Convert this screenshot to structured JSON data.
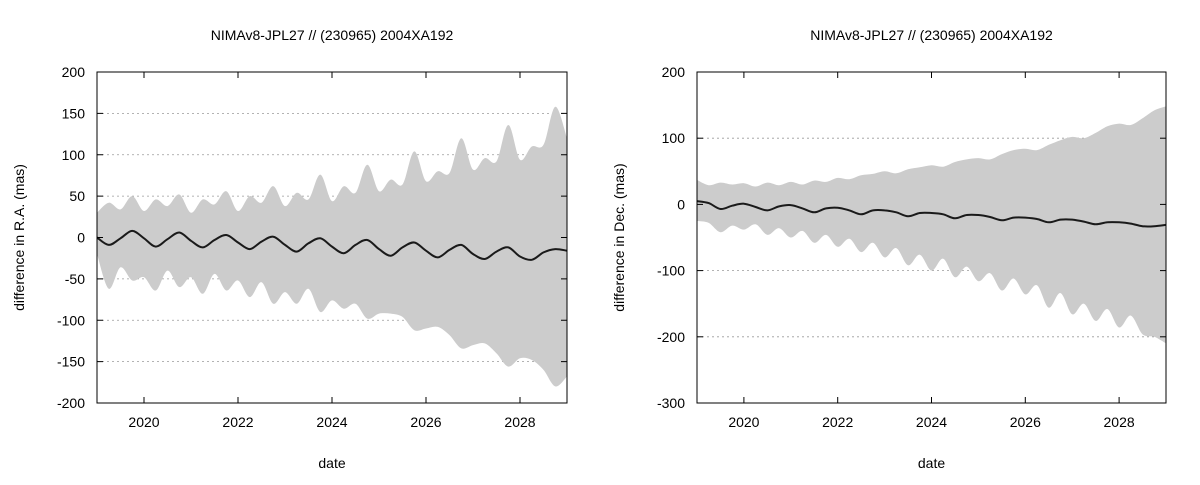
{
  "chart_data": [
    {
      "type": "area",
      "title": "NIMAv8-JPL27 // (230965) 2004XA192",
      "xlabel": "date",
      "ylabel": "difference in R.A. (mas)",
      "xlim": [
        2019.0,
        2029.0
      ],
      "ylim": [
        -200,
        200
      ],
      "xticks": [
        2020,
        2022,
        2024,
        2026,
        2028
      ],
      "yticks": [
        -200,
        -150,
        -100,
        -50,
        0,
        50,
        100,
        150,
        200
      ],
      "grid": "horizontal dotted",
      "colors": {
        "band": "#cccccc",
        "line": "#1a1a1a",
        "grid": "#9a9a9a"
      },
      "series": [
        {
          "kind": "band",
          "x": [
            2019.0,
            2019.25,
            2019.5,
            2019.75,
            2020.0,
            2020.25,
            2020.5,
            2020.75,
            2021.0,
            2021.25,
            2021.5,
            2021.75,
            2022.0,
            2022.25,
            2022.5,
            2022.75,
            2023.0,
            2023.25,
            2023.5,
            2023.75,
            2024.0,
            2024.25,
            2024.5,
            2024.75,
            2025.0,
            2025.25,
            2025.5,
            2025.75,
            2026.0,
            2026.25,
            2026.5,
            2026.75,
            2027.0,
            2027.25,
            2027.5,
            2027.75,
            2028.0,
            2028.25,
            2028.5,
            2028.75,
            2029.0
          ],
          "upper": [
            30,
            42,
            34,
            50,
            32,
            46,
            38,
            52,
            30,
            46,
            40,
            56,
            32,
            50,
            42,
            62,
            38,
            54,
            46,
            76,
            44,
            62,
            54,
            88,
            56,
            70,
            64,
            104,
            68,
            80,
            78,
            120,
            82,
            96,
            92,
            136,
            94,
            110,
            112,
            158,
            120
          ],
          "lower": [
            -20,
            -62,
            -36,
            -52,
            -48,
            -64,
            -40,
            -60,
            -48,
            -68,
            -44,
            -64,
            -52,
            -72,
            -54,
            -80,
            -66,
            -80,
            -62,
            -90,
            -76,
            -86,
            -80,
            -98,
            -92,
            -92,
            -96,
            -112,
            -110,
            -108,
            -118,
            -134,
            -130,
            -128,
            -140,
            -156,
            -146,
            -148,
            -160,
            -180,
            -168
          ]
        },
        {
          "kind": "line",
          "x": [
            2019.0,
            2019.25,
            2019.5,
            2019.75,
            2020.0,
            2020.25,
            2020.5,
            2020.75,
            2021.0,
            2021.25,
            2021.5,
            2021.75,
            2022.0,
            2022.25,
            2022.5,
            2022.75,
            2023.0,
            2023.25,
            2023.5,
            2023.75,
            2024.0,
            2024.25,
            2024.5,
            2024.75,
            2025.0,
            2025.25,
            2025.5,
            2025.75,
            2026.0,
            2026.25,
            2026.5,
            2026.75,
            2027.0,
            2027.25,
            2027.5,
            2027.75,
            2028.0,
            2028.25,
            2028.5,
            2028.75,
            2029.0
          ],
          "values": [
            0,
            -9,
            -1,
            8,
            -1,
            -11,
            -2,
            6,
            -4,
            -12,
            -3,
            3,
            -6,
            -14,
            -5,
            1,
            -9,
            -17,
            -7,
            -1,
            -11,
            -19,
            -9,
            -3,
            -14,
            -22,
            -12,
            -6,
            -16,
            -24,
            -15,
            -9,
            -20,
            -26,
            -17,
            -12,
            -23,
            -27,
            -18,
            -14,
            -16
          ]
        }
      ]
    },
    {
      "type": "area",
      "title": "NIMAv8-JPL27 // (230965) 2004XA192",
      "xlabel": "date",
      "ylabel": "difference in Dec. (mas)",
      "xlim": [
        2019.0,
        2029.0
      ],
      "ylim": [
        -300,
        200
      ],
      "xticks": [
        2020,
        2022,
        2024,
        2026,
        2028
      ],
      "yticks": [
        -300,
        -200,
        -100,
        0,
        100,
        200
      ],
      "grid": "horizontal dotted",
      "colors": {
        "band": "#cccccc",
        "line": "#1a1a1a",
        "grid": "#9a9a9a"
      },
      "series": [
        {
          "kind": "band",
          "x": [
            2019.0,
            2019.25,
            2019.5,
            2019.75,
            2020.0,
            2020.25,
            2020.5,
            2020.75,
            2021.0,
            2021.25,
            2021.5,
            2021.75,
            2022.0,
            2022.25,
            2022.5,
            2022.75,
            2023.0,
            2023.25,
            2023.5,
            2023.75,
            2024.0,
            2024.25,
            2024.5,
            2024.75,
            2025.0,
            2025.25,
            2025.5,
            2025.75,
            2026.0,
            2026.25,
            2026.5,
            2026.75,
            2027.0,
            2027.25,
            2027.5,
            2027.75,
            2028.0,
            2028.25,
            2028.5,
            2028.75,
            2029.0
          ],
          "upper": [
            37,
            29,
            33,
            30,
            32,
            27,
            33,
            29,
            34,
            30,
            36,
            34,
            40,
            38,
            44,
            46,
            50,
            47,
            53,
            56,
            59,
            57,
            64,
            68,
            70,
            68,
            76,
            82,
            84,
            82,
            90,
            97,
            102,
            100,
            108,
            118,
            122,
            120,
            130,
            142,
            148
          ],
          "lower": [
            -25,
            -28,
            -42,
            -32,
            -38,
            -30,
            -46,
            -36,
            -50,
            -40,
            -58,
            -46,
            -64,
            -52,
            -72,
            -58,
            -80,
            -66,
            -92,
            -76,
            -100,
            -82,
            -110,
            -94,
            -116,
            -104,
            -130,
            -112,
            -136,
            -122,
            -156,
            -134,
            -166,
            -150,
            -176,
            -158,
            -186,
            -168,
            -196,
            -200,
            -210
          ]
        },
        {
          "kind": "line",
          "x": [
            2019.0,
            2019.25,
            2019.5,
            2019.75,
            2020.0,
            2020.25,
            2020.5,
            2020.75,
            2021.0,
            2021.25,
            2021.5,
            2021.75,
            2022.0,
            2022.25,
            2022.5,
            2022.75,
            2023.0,
            2023.25,
            2023.5,
            2023.75,
            2024.0,
            2024.25,
            2024.5,
            2024.75,
            2025.0,
            2025.25,
            2025.5,
            2025.75,
            2026.0,
            2026.25,
            2026.5,
            2026.75,
            2027.0,
            2027.25,
            2027.5,
            2027.75,
            2028.0,
            2028.25,
            2028.5,
            2028.75,
            2029.0
          ],
          "values": [
            5,
            2,
            -7,
            -2,
            1,
            -4,
            -9,
            -3,
            -1,
            -6,
            -12,
            -6,
            -5,
            -9,
            -15,
            -9,
            -9,
            -12,
            -18,
            -13,
            -13,
            -15,
            -21,
            -16,
            -16,
            -19,
            -24,
            -20,
            -20,
            -22,
            -27,
            -23,
            -23,
            -26,
            -30,
            -27,
            -27,
            -29,
            -33,
            -33,
            -31
          ]
        }
      ]
    }
  ]
}
